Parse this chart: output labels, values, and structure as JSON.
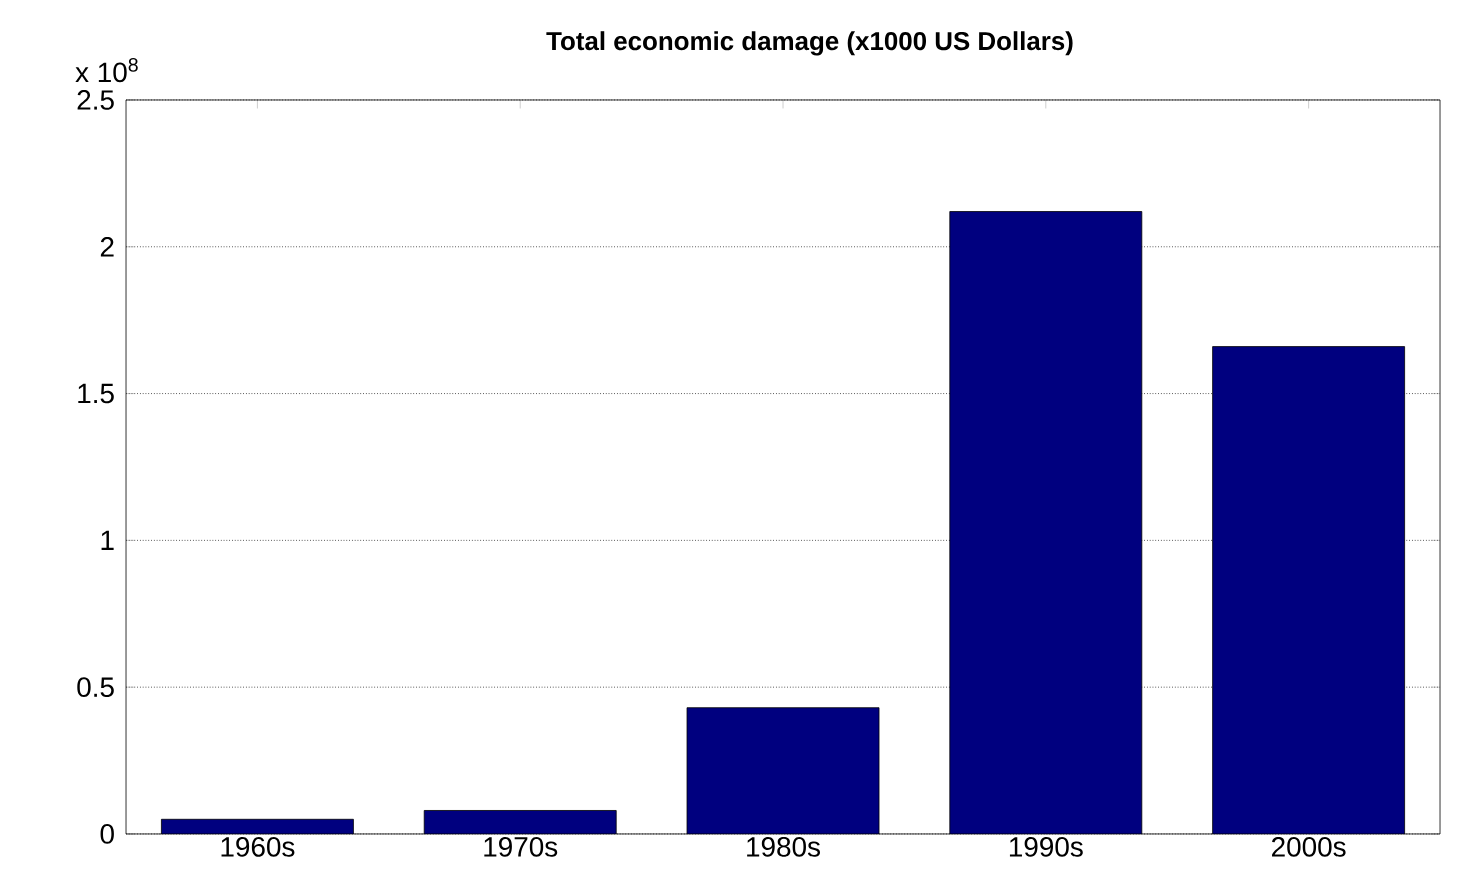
{
  "chart_data": {
    "type": "bar",
    "title": "Total economic damage (x1000 US Dollars)",
    "categories": [
      "1960s",
      "1970s",
      "1980s",
      "1990s",
      "2000s"
    ],
    "values": [
      0.05,
      0.08,
      0.43,
      2.12,
      1.66
    ],
    "color": "#00007f",
    "ylim": [
      0,
      2.5
    ],
    "yticks": [
      0,
      0.5,
      1,
      1.5,
      2,
      2.5
    ],
    "grid": "y",
    "annotations": [
      "x 10$^{8}$"
    ]
  }
}
